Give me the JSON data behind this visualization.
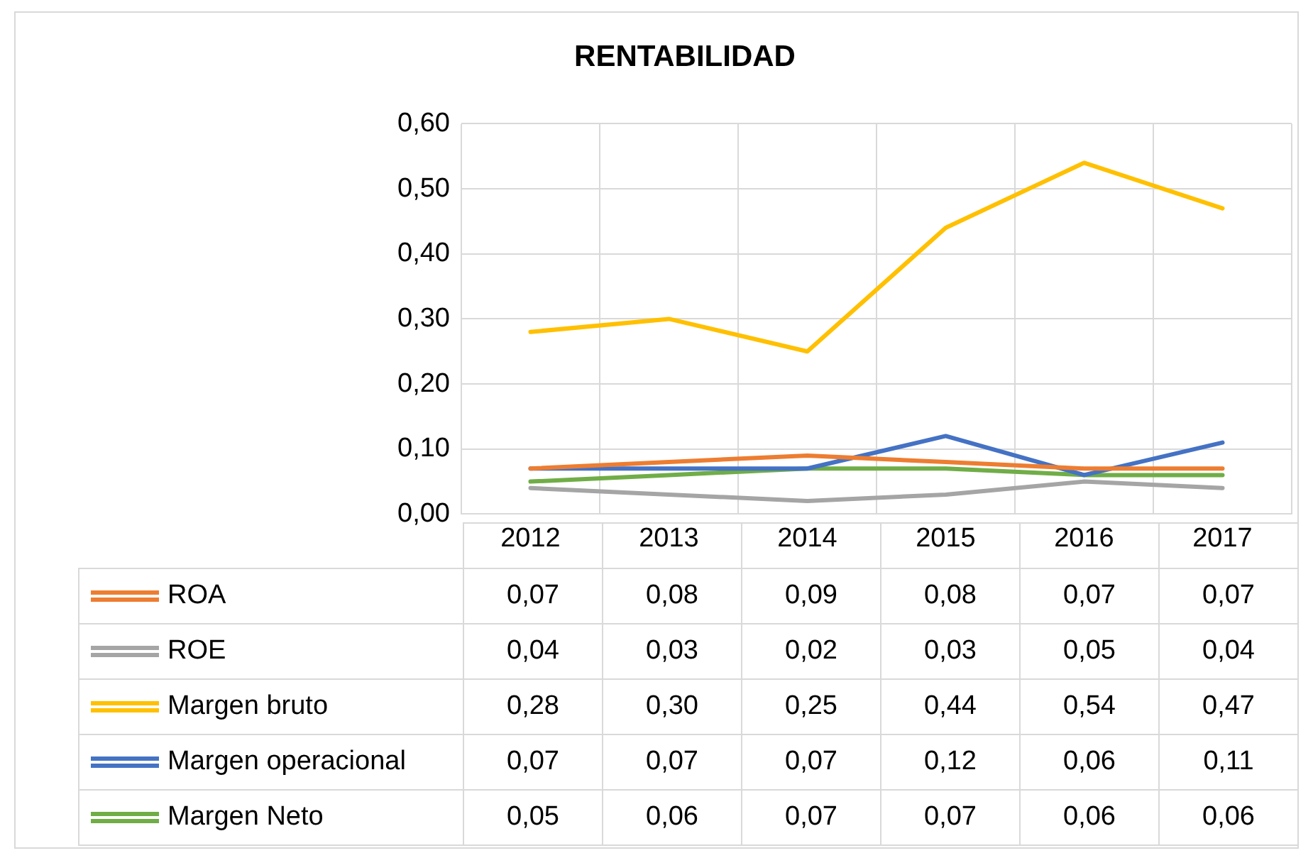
{
  "chart_data": {
    "type": "line",
    "title": "RENTABILIDAD",
    "categories": [
      "2012",
      "2013",
      "2014",
      "2015",
      "2016",
      "2017"
    ],
    "series": [
      {
        "name": "ROA",
        "color": "#ed7d31",
        "values": [
          0.07,
          0.08,
          0.09,
          0.08,
          0.07,
          0.07
        ],
        "value_labels": [
          "0,07",
          "0,08",
          "0,09",
          "0,08",
          "0,07",
          "0,07"
        ]
      },
      {
        "name": "ROE",
        "color": "#a5a5a5",
        "values": [
          0.04,
          0.03,
          0.02,
          0.03,
          0.05,
          0.04
        ],
        "value_labels": [
          "0,04",
          "0,03",
          "0,02",
          "0,03",
          "0,05",
          "0,04"
        ]
      },
      {
        "name": "Margen bruto",
        "color": "#ffc000",
        "values": [
          0.28,
          0.3,
          0.25,
          0.44,
          0.54,
          0.47
        ],
        "value_labels": [
          "0,28",
          "0,30",
          "0,25",
          "0,44",
          "0,54",
          "0,47"
        ]
      },
      {
        "name": "Margen operacional",
        "color": "#4472c4",
        "values": [
          0.07,
          0.07,
          0.07,
          0.12,
          0.06,
          0.11
        ],
        "value_labels": [
          "0,07",
          "0,07",
          "0,07",
          "0,12",
          "0,06",
          "0,11"
        ]
      },
      {
        "name": "Margen Neto",
        "color": "#70ad47",
        "values": [
          0.05,
          0.06,
          0.07,
          0.07,
          0.06,
          0.06
        ],
        "value_labels": [
          "0,05",
          "0,06",
          "0,07",
          "0,07",
          "0,06",
          "0,06"
        ]
      }
    ],
    "ylim": [
      0,
      0.6
    ],
    "yticks": [
      {
        "value": 0,
        "label": "0,00"
      },
      {
        "value": 0.1,
        "label": "0,10"
      },
      {
        "value": 0.2,
        "label": "0,20"
      },
      {
        "value": 0.3,
        "label": "0,30"
      },
      {
        "value": 0.4,
        "label": "0,40"
      },
      {
        "value": 0.5,
        "label": "0,50"
      },
      {
        "value": 0.6,
        "label": "0,60"
      }
    ],
    "grid": true,
    "legend": "bottom",
    "marker": "none",
    "line_style": "solid"
  }
}
